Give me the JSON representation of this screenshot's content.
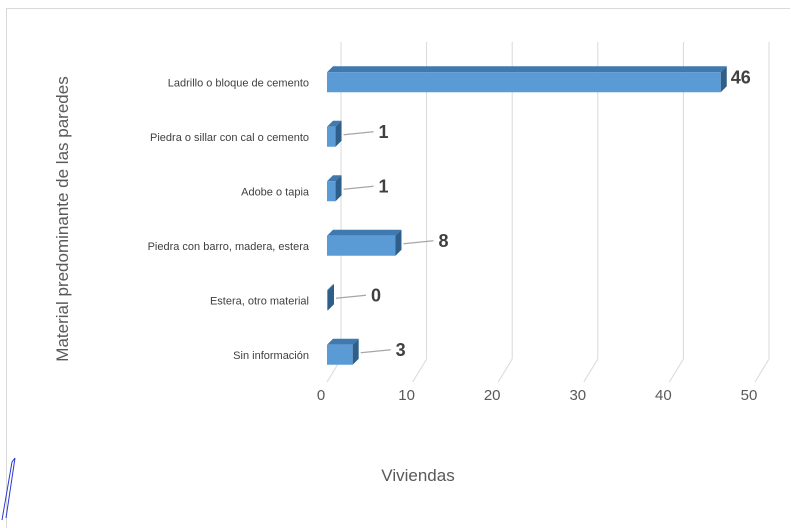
{
  "chart_data": {
    "type": "bar",
    "orientation": "horizontal",
    "style": "3d",
    "categories": [
      "Ladrillo o bloque de cemento",
      "Piedra o sillar con cal o cemento",
      "Adobe o tapia",
      "Piedra con barro, madera, estera",
      "Estera, otro material",
      "Sin información"
    ],
    "values": [
      46,
      1,
      1,
      8,
      0,
      3
    ],
    "data_labels": [
      "46",
      "1",
      "1",
      "8",
      "0",
      "3"
    ],
    "xlabel": "Viviendas",
    "ylabel": "Material predominante de las paredes",
    "xlim": [
      0,
      50
    ],
    "xticks": [
      "0",
      "10",
      "20",
      "30",
      "40",
      "50"
    ],
    "grid": "vertical",
    "colors": {
      "bar_front": "#5b9bd5",
      "bar_side": "#2e5f8a",
      "bar_top": "#3f79b0",
      "grid": "#d9d9d9"
    }
  }
}
